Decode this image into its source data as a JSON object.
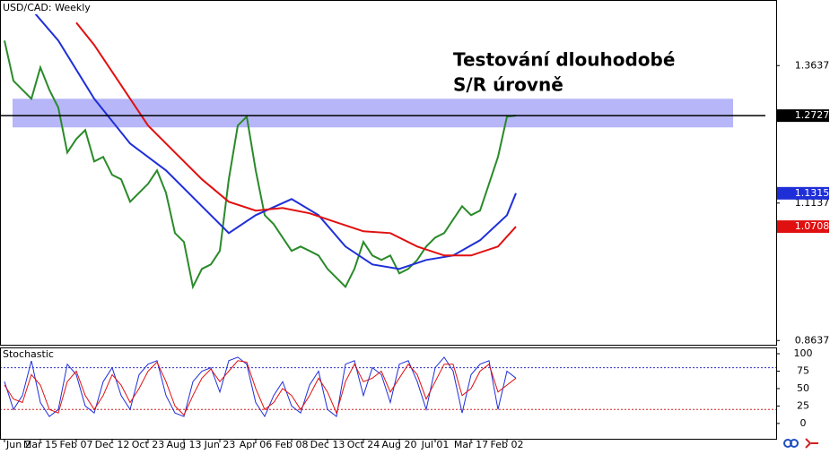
{
  "chart_data": [
    {
      "type": "line",
      "title": "USD/CAD: Weekly",
      "annotation": [
        "Testování dlouhodobé",
        "S/R úrovně"
      ],
      "xlim": [
        -0.5,
        86
      ],
      "ylim": [
        0.856,
        1.483
      ],
      "yticks": [
        1.3637,
        1.1137,
        0.8637
      ],
      "zone": [
        1.2513,
        1.3034
      ],
      "zone_color": "#a9a9f7",
      "hline": 1.2727,
      "series": [
        {
          "name": "USD/CAD",
          "color": "#2a8a2a",
          "values": [
            1.4093,
            1.336,
            1.3197,
            1.3034,
            1.3604,
            1.3197,
            1.2872,
            1.2057,
            1.2301,
            1.2464,
            1.1894,
            1.1976,
            1.165,
            1.1569,
            1.1161,
            1.1324,
            1.1487,
            1.1731,
            1.1324,
            1.0591,
            1.0429,
            0.9614,
            0.994,
            1.0021,
            1.0266,
            1.1569,
            1.2546,
            1.2709,
            1.1731,
            1.0917,
            1.0754,
            1.051,
            1.0266,
            1.0347,
            1.0266,
            1.0184,
            0.994,
            0.9777,
            0.9614,
            0.994,
            1.0429,
            1.0184,
            1.0103,
            1.0184,
            0.9858,
            0.994,
            1.0103,
            1.0347,
            1.051,
            1.0591,
            1.0836,
            1.108,
            1.0917,
            1.0999,
            1.1487,
            1.1976,
            1.2709,
            1.2727
          ]
        },
        {
          "color": "#1f2fd8",
          "x": [
            3,
            6,
            10,
            14,
            18,
            22,
            25,
            28,
            32,
            35,
            38,
            41,
            44,
            47,
            50,
            53,
            56,
            57
          ],
          "values": [
            1.4663,
            1.4093,
            1.3034,
            1.222,
            1.1731,
            1.108,
            1.0591,
            1.0917,
            1.121,
            1.0917,
            1.0347,
            1.0021,
            0.994,
            1.0103,
            1.0184,
            1.0461,
            1.0917,
            1.1315
          ]
        },
        {
          "color": "#e01010",
          "x": [
            8,
            10,
            13,
            16,
            19,
            22,
            25,
            28,
            31,
            34,
            37,
            40,
            43,
            46,
            49,
            52,
            55,
            57
          ],
          "values": [
            1.4419,
            1.4012,
            1.3279,
            1.2546,
            1.2057,
            1.1569,
            1.1161,
            1.0999,
            1.1047,
            1.095,
            1.0787,
            1.0624,
            1.0591,
            1.0347,
            1.0184,
            1.0184,
            1.0347,
            1.0708
          ]
        }
      ]
    },
    {
      "type": "line",
      "title": "Stochastic",
      "xlim": [
        -0.5,
        86
      ],
      "ylim": [
        -22,
        109
      ],
      "yticks": [
        100,
        75,
        50,
        25,
        0
      ],
      "levels": [
        {
          "value": 80,
          "color": "#3030c0"
        },
        {
          "value": 20,
          "color": "#d02020"
        }
      ],
      "xticks": [
        {
          "value": 0,
          "label": "Jun 2"
        },
        {
          "value": 4,
          "label": "Mar 15"
        },
        {
          "value": 8,
          "label": "Feb 07"
        },
        {
          "value": 12,
          "label": "Dec 12"
        },
        {
          "value": 16,
          "label": "Oct 23"
        },
        {
          "value": 20,
          "label": "Aug 13"
        },
        {
          "value": 24,
          "label": "Jun 23"
        },
        {
          "value": 28,
          "label": "Apr 06"
        },
        {
          "value": 32,
          "label": "Feb 08"
        },
        {
          "value": 36,
          "label": "Dec 13"
        },
        {
          "value": 40,
          "label": "Oct 24"
        },
        {
          "value": 44,
          "label": "Aug 20"
        },
        {
          "value": 48,
          "label": "Jul 01"
        },
        {
          "value": 52,
          "label": "Mar 17"
        },
        {
          "value": 56,
          "label": "Feb 02"
        }
      ],
      "series": [
        {
          "color": "#1f2fd8",
          "values": [
            60,
            20,
            40,
            90,
            30,
            10,
            20,
            85,
            70,
            25,
            15,
            60,
            80,
            40,
            20,
            70,
            85,
            90,
            40,
            15,
            10,
            60,
            75,
            80,
            45,
            90,
            95,
            85,
            30,
            10,
            40,
            60,
            25,
            15,
            55,
            75,
            20,
            10,
            85,
            90,
            40,
            80,
            70,
            30,
            85,
            90,
            60,
            20,
            80,
            95,
            75,
            15,
            70,
            85,
            90,
            20,
            75,
            65
          ]
        },
        {
          "color": "#e01010",
          "values": [
            55,
            35,
            30,
            70,
            55,
            20,
            15,
            60,
            75,
            40,
            20,
            40,
            70,
            55,
            30,
            50,
            75,
            88,
            60,
            25,
            12,
            40,
            65,
            78,
            60,
            75,
            90,
            88,
            50,
            20,
            30,
            50,
            40,
            20,
            40,
            65,
            45,
            15,
            60,
            85,
            60,
            65,
            75,
            45,
            65,
            85,
            70,
            35,
            60,
            85,
            85,
            40,
            50,
            75,
            85,
            45,
            55,
            65
          ]
        }
      ]
    }
  ]
}
